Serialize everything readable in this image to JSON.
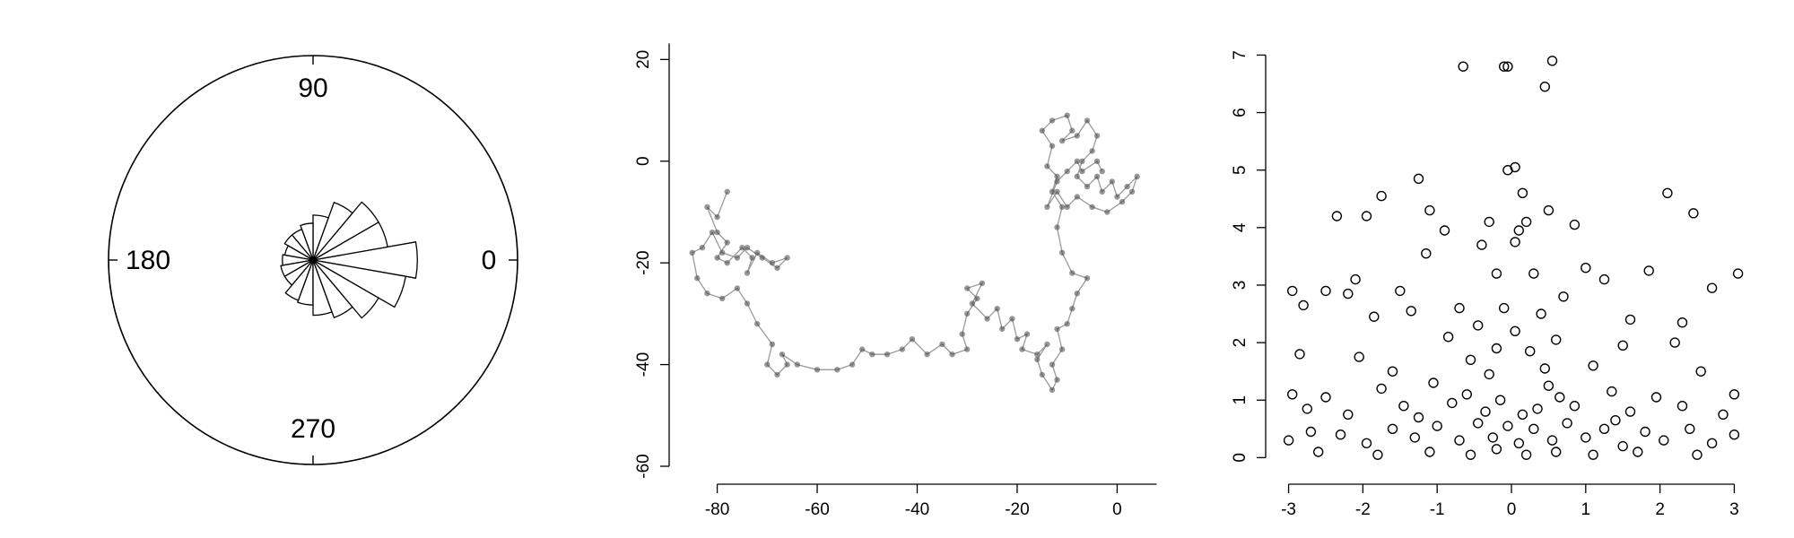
{
  "chart_data": [
    {
      "type": "rose",
      "title": "",
      "angle_labels": [
        "90",
        "180",
        "0",
        "270"
      ],
      "bins": [
        {
          "angle": 0,
          "value": 0.51
        },
        {
          "angle": 20,
          "value": 0.37
        },
        {
          "angle": 40,
          "value": 0.37
        },
        {
          "angle": 60,
          "value": 0.3
        },
        {
          "angle": 80,
          "value": 0.22
        },
        {
          "angle": 100,
          "value": 0.18
        },
        {
          "angle": 120,
          "value": 0.16
        },
        {
          "angle": 140,
          "value": 0.16
        },
        {
          "angle": 160,
          "value": 0.14
        },
        {
          "angle": 180,
          "value": 0.15
        },
        {
          "angle": 200,
          "value": 0.16
        },
        {
          "angle": 220,
          "value": 0.16
        },
        {
          "angle": 240,
          "value": 0.21
        },
        {
          "angle": 260,
          "value": 0.22
        },
        {
          "angle": 280,
          "value": 0.27
        },
        {
          "angle": 300,
          "value": 0.3
        },
        {
          "angle": 320,
          "value": 0.37
        },
        {
          "angle": 340,
          "value": 0.46
        }
      ],
      "bin_width": 20
    },
    {
      "type": "line",
      "title": "",
      "xlabel": "",
      "ylabel": "",
      "xlim": [
        -88,
        8
      ],
      "ylim": [
        -60,
        22
      ],
      "xticks": [
        -80,
        -60,
        -40,
        -20,
        0
      ],
      "yticks": [
        20,
        0,
        -20,
        -40,
        -60
      ],
      "x_tick_labels": [
        "-80",
        "-60",
        "-40",
        "-20",
        "0"
      ],
      "y_tick_labels": [
        "20",
        "0",
        "-20",
        "-40",
        "-60"
      ],
      "color": "#555555",
      "path": [
        [
          -78,
          -6
        ],
        [
          -80,
          -11
        ],
        [
          -82,
          -9
        ],
        [
          -80,
          -14
        ],
        [
          -78,
          -16
        ],
        [
          -80,
          -19
        ],
        [
          -78,
          -20
        ],
        [
          -75,
          -17
        ],
        [
          -73,
          -19
        ],
        [
          -74,
          -22
        ],
        [
          -72,
          -18
        ],
        [
          -69,
          -20
        ],
        [
          -66,
          -19
        ],
        [
          -68,
          -21
        ],
        [
          -71,
          -19
        ],
        [
          -74,
          -17
        ],
        [
          -76,
          -19
        ],
        [
          -79,
          -18
        ],
        [
          -81,
          -14
        ],
        [
          -83,
          -17
        ],
        [
          -85,
          -18
        ],
        [
          -84,
          -23
        ],
        [
          -82,
          -26
        ],
        [
          -79,
          -27
        ],
        [
          -76,
          -25
        ],
        [
          -74,
          -28
        ],
        [
          -72,
          -32
        ],
        [
          -69,
          -36
        ],
        [
          -70,
          -40
        ],
        [
          -68,
          -42
        ],
        [
          -66,
          -40
        ],
        [
          -67,
          -38
        ],
        [
          -64,
          -40
        ],
        [
          -60,
          -41
        ],
        [
          -56,
          -41
        ],
        [
          -53,
          -40
        ],
        [
          -51,
          -37
        ],
        [
          -49,
          -38
        ],
        [
          -46,
          -38
        ],
        [
          -43,
          -37
        ],
        [
          -41,
          -35
        ],
        [
          -38,
          -38
        ],
        [
          -35,
          -36
        ],
        [
          -33,
          -38
        ],
        [
          -30,
          -37
        ],
        [
          -31,
          -34
        ],
        [
          -30,
          -30
        ],
        [
          -28,
          -27
        ],
        [
          -30,
          -25
        ],
        [
          -27,
          -24
        ],
        [
          -29,
          -28
        ],
        [
          -26,
          -31
        ],
        [
          -24,
          -29
        ],
        [
          -23,
          -33
        ],
        [
          -21,
          -31
        ],
        [
          -20,
          -35
        ],
        [
          -18,
          -34
        ],
        [
          -19,
          -37
        ],
        [
          -16,
          -38
        ],
        [
          -14,
          -36
        ],
        [
          -16,
          -39
        ],
        [
          -15,
          -42
        ],
        [
          -13,
          -45
        ],
        [
          -12,
          -43
        ],
        [
          -13,
          -40
        ],
        [
          -11,
          -37
        ],
        [
          -12,
          -33
        ],
        [
          -10,
          -32
        ],
        [
          -9,
          -29
        ],
        [
          -8,
          -26
        ],
        [
          -6,
          -23
        ],
        [
          -9,
          -22
        ],
        [
          -11,
          -18
        ],
        [
          -12,
          -13
        ],
        [
          -11,
          -9
        ],
        [
          -13,
          -6
        ],
        [
          -12,
          -3
        ],
        [
          -14,
          -1
        ],
        [
          -13,
          3
        ],
        [
          -15,
          6
        ],
        [
          -13,
          8
        ],
        [
          -10,
          9
        ],
        [
          -9,
          6
        ],
        [
          -11,
          4
        ],
        [
          -8,
          5
        ],
        [
          -6,
          8
        ],
        [
          -4,
          5
        ],
        [
          -5,
          2
        ],
        [
          -7,
          0
        ],
        [
          -8,
          -3
        ],
        [
          -6,
          -5
        ],
        [
          -4,
          -3
        ],
        [
          -3,
          -6
        ],
        [
          -1,
          -4
        ],
        [
          0,
          -7
        ],
        [
          2,
          -5
        ],
        [
          4,
          -3
        ],
        [
          3,
          -6
        ],
        [
          1,
          -8
        ],
        [
          -2,
          -10
        ],
        [
          -5,
          -9
        ],
        [
          -8,
          -7
        ],
        [
          -10,
          -9
        ],
        [
          -12,
          -6
        ],
        [
          -14,
          -9
        ],
        [
          -12,
          -4
        ],
        [
          -10,
          -2
        ],
        [
          -8,
          0
        ],
        [
          -7,
          -2
        ],
        [
          -4,
          0
        ],
        [
          -3,
          -2
        ]
      ]
    },
    {
      "type": "scatter",
      "title": "",
      "xlabel": "",
      "ylabel": "",
      "xlim": [
        -3.2,
        3.2
      ],
      "ylim": [
        -0.15,
        7.1
      ],
      "xticks": [
        -3,
        -2,
        -1,
        0,
        1,
        2,
        3
      ],
      "yticks": [
        0,
        1,
        2,
        3,
        4,
        5,
        6,
        7
      ],
      "x_tick_labels": [
        "-3",
        "-2",
        "-1",
        "0",
        "1",
        "2",
        "3"
      ],
      "y_tick_labels": [
        "0",
        "1",
        "2",
        "3",
        "4",
        "5",
        "6",
        "7"
      ],
      "marker": "open-circle",
      "points": [
        [
          -0.65,
          6.8
        ],
        [
          -0.1,
          6.8
        ],
        [
          -0.05,
          6.8
        ],
        [
          0.45,
          6.45
        ],
        [
          0.55,
          6.9
        ],
        [
          0.05,
          5.05
        ],
        [
          -0.05,
          5.0
        ],
        [
          -1.25,
          4.85
        ],
        [
          -1.75,
          4.55
        ],
        [
          -1.95,
          4.2
        ],
        [
          -2.35,
          4.2
        ],
        [
          -1.1,
          4.3
        ],
        [
          0.15,
          4.6
        ],
        [
          2.1,
          4.6
        ],
        [
          2.45,
          4.25
        ],
        [
          0.2,
          4.1
        ],
        [
          0.5,
          4.3
        ],
        [
          -0.4,
          3.7
        ],
        [
          0.05,
          3.75
        ],
        [
          0.1,
          3.95
        ],
        [
          -0.3,
          4.1
        ],
        [
          0.85,
          4.05
        ],
        [
          -1.15,
          3.55
        ],
        [
          -0.9,
          3.95
        ],
        [
          -2.95,
          2.9
        ],
        [
          -2.8,
          2.65
        ],
        [
          -2.1,
          3.1
        ],
        [
          -2.2,
          2.85
        ],
        [
          -1.5,
          2.9
        ],
        [
          -0.2,
          3.2
        ],
        [
          0.3,
          3.2
        ],
        [
          1.0,
          3.3
        ],
        [
          1.25,
          3.1
        ],
        [
          1.85,
          3.25
        ],
        [
          2.7,
          2.95
        ],
        [
          3.05,
          3.2
        ],
        [
          -2.5,
          2.9
        ],
        [
          -0.7,
          2.6
        ],
        [
          0.7,
          2.8
        ],
        [
          -1.35,
          2.55
        ],
        [
          -0.45,
          2.3
        ],
        [
          0.4,
          2.5
        ],
        [
          1.6,
          2.4
        ],
        [
          2.3,
          2.35
        ],
        [
          -1.85,
          2.45
        ],
        [
          -2.85,
          1.8
        ],
        [
          -2.05,
          1.75
        ],
        [
          -0.85,
          2.1
        ],
        [
          0.6,
          2.05
        ],
        [
          1.5,
          1.95
        ],
        [
          2.2,
          2.0
        ],
        [
          -1.6,
          1.5
        ],
        [
          -0.55,
          1.7
        ],
        [
          0.25,
          1.85
        ],
        [
          1.1,
          1.6
        ],
        [
          2.55,
          1.5
        ],
        [
          -2.95,
          1.1
        ],
        [
          -2.5,
          1.05
        ],
        [
          -1.75,
          1.2
        ],
        [
          -1.05,
          1.3
        ],
        [
          -0.3,
          1.45
        ],
        [
          0.5,
          1.25
        ],
        [
          1.35,
          1.15
        ],
        [
          1.95,
          1.05
        ],
        [
          3.0,
          1.1
        ],
        [
          -2.75,
          0.85
        ],
        [
          -2.2,
          0.75
        ],
        [
          -1.45,
          0.9
        ],
        [
          -0.8,
          0.95
        ],
        [
          -0.15,
          1.0
        ],
        [
          0.35,
          0.85
        ],
        [
          0.85,
          0.9
        ],
        [
          1.6,
          0.8
        ],
        [
          2.3,
          0.9
        ],
        [
          2.85,
          0.75
        ],
        [
          -3.0,
          0.3
        ],
        [
          -2.7,
          0.45
        ],
        [
          -2.3,
          0.4
        ],
        [
          -1.95,
          0.25
        ],
        [
          -1.6,
          0.5
        ],
        [
          -1.3,
          0.35
        ],
        [
          -1.0,
          0.55
        ],
        [
          -0.7,
          0.3
        ],
        [
          -0.45,
          0.6
        ],
        [
          -0.25,
          0.35
        ],
        [
          -0.05,
          0.55
        ],
        [
          0.1,
          0.25
        ],
        [
          0.3,
          0.5
        ],
        [
          0.55,
          0.3
        ],
        [
          0.75,
          0.6
        ],
        [
          1.0,
          0.35
        ],
        [
          1.25,
          0.5
        ],
        [
          1.5,
          0.2
        ],
        [
          1.8,
          0.45
        ],
        [
          2.05,
          0.3
        ],
        [
          2.4,
          0.5
        ],
        [
          2.7,
          0.25
        ],
        [
          3.0,
          0.4
        ],
        [
          -2.6,
          0.1
        ],
        [
          -1.8,
          0.05
        ],
        [
          -1.1,
          0.1
        ],
        [
          -0.55,
          0.05
        ],
        [
          -0.2,
          0.15
        ],
        [
          0.2,
          0.05
        ],
        [
          0.6,
          0.1
        ],
        [
          1.1,
          0.05
        ],
        [
          1.7,
          0.1
        ],
        [
          2.5,
          0.05
        ],
        [
          -0.35,
          0.8
        ],
        [
          0.15,
          0.75
        ],
        [
          -0.6,
          1.1
        ],
        [
          0.65,
          1.05
        ],
        [
          -1.25,
          0.7
        ],
        [
          1.4,
          0.65
        ],
        [
          -0.1,
          2.6
        ],
        [
          0.05,
          2.2
        ],
        [
          -0.2,
          1.9
        ],
        [
          0.45,
          1.55
        ]
      ]
    }
  ]
}
